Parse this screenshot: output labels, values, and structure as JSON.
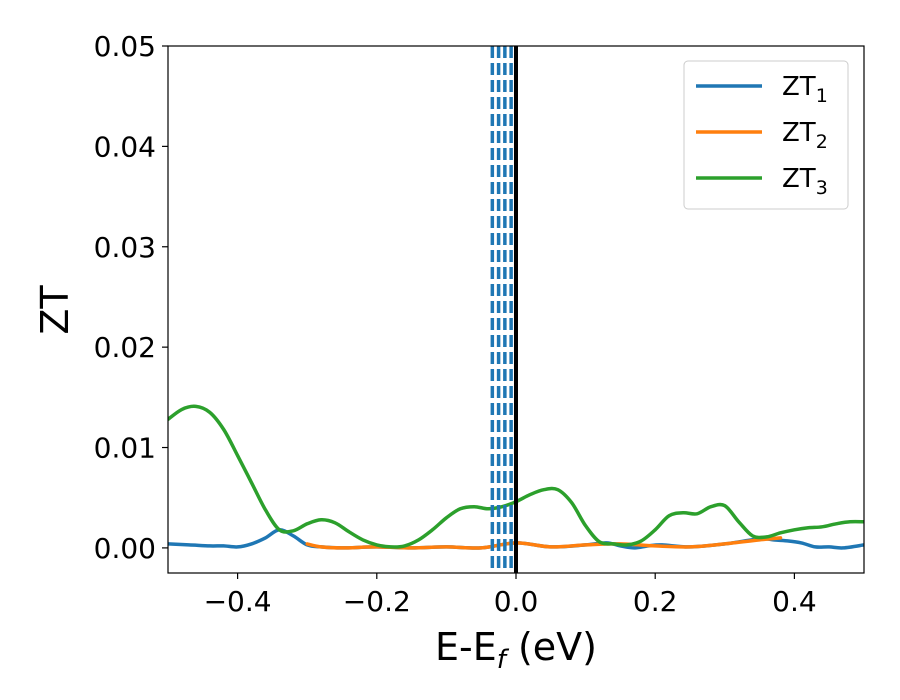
{
  "chart_data": {
    "type": "line",
    "title": "",
    "xlabel": {
      "main": "E-E",
      "sub": "f",
      "suffix": " (eV)"
    },
    "ylabel": "ZT",
    "xlim": [
      -0.5,
      0.5
    ],
    "ylim": [
      -0.0025,
      0.05
    ],
    "grid": false,
    "legend_position": "top-right",
    "x_ticks": [
      -0.4,
      -0.2,
      0.0,
      0.2,
      0.4
    ],
    "x_tick_labels": [
      "−0.4",
      "−0.2",
      "0.0",
      "0.2",
      "0.4"
    ],
    "y_ticks": [
      0.0,
      0.01,
      0.02,
      0.03,
      0.04,
      0.05
    ],
    "y_tick_labels": [
      "0.00",
      "0.01",
      "0.02",
      "0.03",
      "0.04",
      "0.05"
    ],
    "vertical_lines": [
      {
        "x": -0.034,
        "color": "#1f77b4",
        "style": "dashed"
      },
      {
        "x": -0.025,
        "color": "#1f77b4",
        "style": "dashed"
      },
      {
        "x": -0.016,
        "color": "#1f77b4",
        "style": "dashed"
      },
      {
        "x": -0.007,
        "color": "#1f77b4",
        "style": "dashed"
      },
      {
        "x": 0.0,
        "color": "#000000",
        "style": "solid"
      }
    ],
    "series": [
      {
        "name": "ZT",
        "sub": "1",
        "color": "#1f77b4",
        "x": [
          -0.5,
          -0.47,
          -0.44,
          -0.42,
          -0.4,
          -0.38,
          -0.36,
          -0.34,
          -0.32,
          -0.3,
          -0.28,
          -0.25,
          -0.2,
          -0.15,
          -0.1,
          -0.05,
          0.0,
          0.05,
          0.1,
          0.13,
          0.15,
          0.17,
          0.19,
          0.21,
          0.25,
          0.3,
          0.35,
          0.37,
          0.39,
          0.41,
          0.43,
          0.45,
          0.47,
          0.5
        ],
        "y": [
          0.0004,
          0.0003,
          0.0002,
          0.0002,
          0.0001,
          0.0004,
          0.001,
          0.0018,
          0.0012,
          0.0003,
          0.0001,
          0.0,
          0.0001,
          0.0,
          0.0001,
          0.0,
          0.0005,
          0.0001,
          0.0003,
          0.0005,
          0.0002,
          0.0,
          0.0002,
          0.0003,
          0.0001,
          0.0004,
          0.0009,
          0.0008,
          0.0007,
          0.0005,
          0.0001,
          0.0001,
          0.0,
          0.0003
        ]
      },
      {
        "name": "ZT",
        "sub": "2",
        "color": "#ff7f0e",
        "x": [
          -0.3,
          -0.28,
          -0.25,
          -0.2,
          -0.15,
          -0.1,
          -0.05,
          0.0,
          0.05,
          0.1,
          0.15,
          0.2,
          0.25,
          0.3,
          0.35,
          0.38
        ],
        "y": [
          0.0004,
          0.0001,
          0.0,
          0.0001,
          0.0,
          0.0001,
          0.0,
          0.0005,
          0.0001,
          0.0003,
          0.0004,
          0.0002,
          0.0001,
          0.0004,
          0.0008,
          0.001
        ]
      },
      {
        "name": "ZT",
        "sub": "3",
        "color": "#2ca02c",
        "x": [
          -0.5,
          -0.48,
          -0.46,
          -0.44,
          -0.42,
          -0.4,
          -0.38,
          -0.36,
          -0.34,
          -0.32,
          -0.3,
          -0.28,
          -0.26,
          -0.24,
          -0.22,
          -0.2,
          -0.18,
          -0.16,
          -0.14,
          -0.12,
          -0.1,
          -0.08,
          -0.06,
          -0.04,
          -0.02,
          0.0,
          0.02,
          0.04,
          0.06,
          0.08,
          0.1,
          0.12,
          0.14,
          0.16,
          0.18,
          0.2,
          0.22,
          0.24,
          0.26,
          0.28,
          0.3,
          0.32,
          0.34,
          0.36,
          0.38,
          0.4,
          0.42,
          0.44,
          0.46,
          0.48,
          0.5
        ],
        "y": [
          0.0128,
          0.0138,
          0.0141,
          0.0135,
          0.0118,
          0.0092,
          0.0065,
          0.0038,
          0.0018,
          0.0017,
          0.0024,
          0.0028,
          0.0025,
          0.0016,
          0.0008,
          0.0003,
          0.0001,
          0.0002,
          0.0008,
          0.0018,
          0.003,
          0.0039,
          0.0041,
          0.0039,
          0.0041,
          0.0046,
          0.0053,
          0.0058,
          0.0058,
          0.0045,
          0.0022,
          0.0006,
          0.0004,
          0.0003,
          0.0007,
          0.0018,
          0.0032,
          0.0035,
          0.0034,
          0.0041,
          0.0042,
          0.0026,
          0.0012,
          0.0011,
          0.0015,
          0.0018,
          0.002,
          0.0021,
          0.0024,
          0.0026,
          0.0026
        ]
      }
    ]
  }
}
